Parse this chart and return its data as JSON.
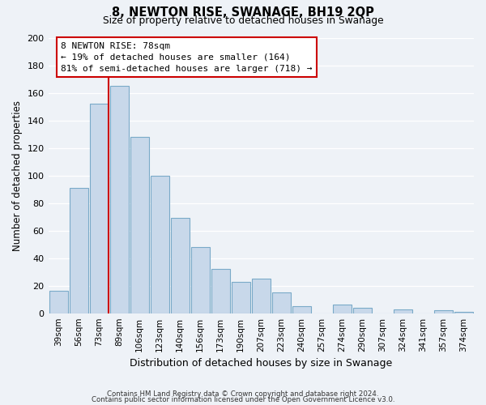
{
  "title": "8, NEWTON RISE, SWANAGE, BH19 2QP",
  "subtitle": "Size of property relative to detached houses in Swanage",
  "xlabel": "Distribution of detached houses by size in Swanage",
  "ylabel": "Number of detached properties",
  "bar_color": "#c8d8ea",
  "bar_edge_color": "#7aaac8",
  "background_color": "#eef2f7",
  "grid_color": "#ffffff",
  "categories": [
    "39sqm",
    "56sqm",
    "73sqm",
    "89sqm",
    "106sqm",
    "123sqm",
    "140sqm",
    "156sqm",
    "173sqm",
    "190sqm",
    "207sqm",
    "223sqm",
    "240sqm",
    "257sqm",
    "274sqm",
    "290sqm",
    "307sqm",
    "324sqm",
    "341sqm",
    "357sqm",
    "374sqm"
  ],
  "values": [
    16,
    91,
    152,
    165,
    128,
    100,
    69,
    48,
    32,
    23,
    25,
    15,
    5,
    0,
    6,
    4,
    0,
    3,
    0,
    2,
    1
  ],
  "vline_color": "#cc0000",
  "annotation_title": "8 NEWTON RISE: 78sqm",
  "annotation_line1": "← 19% of detached houses are smaller (164)",
  "annotation_line2": "81% of semi-detached houses are larger (718) →",
  "annotation_box_color": "#ffffff",
  "annotation_box_edge": "#cc0000",
  "ylim": [
    0,
    200
  ],
  "yticks": [
    0,
    20,
    40,
    60,
    80,
    100,
    120,
    140,
    160,
    180,
    200
  ],
  "footer1": "Contains HM Land Registry data © Crown copyright and database right 2024.",
  "footer2": "Contains public sector information licensed under the Open Government Licence v3.0."
}
